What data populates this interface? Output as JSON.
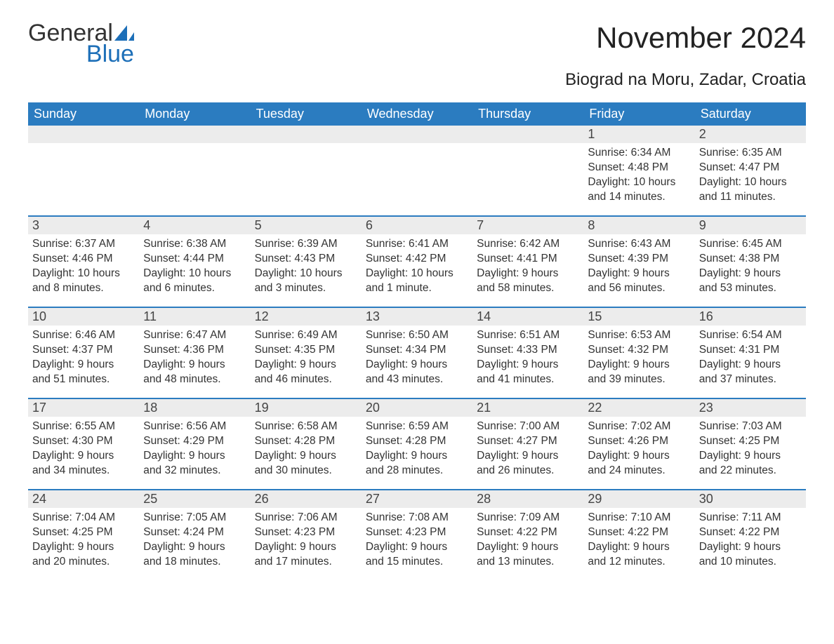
{
  "brand": {
    "general": "General",
    "blue": "Blue"
  },
  "title": "November 2024",
  "subtitle": "Biograd na Moru, Zadar, Croatia",
  "colors": {
    "header_bg": "#2b7cc0",
    "header_text": "#ffffff",
    "daynum_bg": "#ececec",
    "week_border": "#2b7cc0",
    "body_text": "#333333",
    "brand_blue": "#1d6fb8"
  },
  "weekdays": [
    "Sunday",
    "Monday",
    "Tuesday",
    "Wednesday",
    "Thursday",
    "Friday",
    "Saturday"
  ],
  "weeks": [
    [
      null,
      null,
      null,
      null,
      null,
      {
        "n": "1",
        "sunrise": "6:34 AM",
        "sunset": "4:48 PM",
        "daylight": "10 hours and 14 minutes."
      },
      {
        "n": "2",
        "sunrise": "6:35 AM",
        "sunset": "4:47 PM",
        "daylight": "10 hours and 11 minutes."
      }
    ],
    [
      {
        "n": "3",
        "sunrise": "6:37 AM",
        "sunset": "4:46 PM",
        "daylight": "10 hours and 8 minutes."
      },
      {
        "n": "4",
        "sunrise": "6:38 AM",
        "sunset": "4:44 PM",
        "daylight": "10 hours and 6 minutes."
      },
      {
        "n": "5",
        "sunrise": "6:39 AM",
        "sunset": "4:43 PM",
        "daylight": "10 hours and 3 minutes."
      },
      {
        "n": "6",
        "sunrise": "6:41 AM",
        "sunset": "4:42 PM",
        "daylight": "10 hours and 1 minute."
      },
      {
        "n": "7",
        "sunrise": "6:42 AM",
        "sunset": "4:41 PM",
        "daylight": "9 hours and 58 minutes."
      },
      {
        "n": "8",
        "sunrise": "6:43 AM",
        "sunset": "4:39 PM",
        "daylight": "9 hours and 56 minutes."
      },
      {
        "n": "9",
        "sunrise": "6:45 AM",
        "sunset": "4:38 PM",
        "daylight": "9 hours and 53 minutes."
      }
    ],
    [
      {
        "n": "10",
        "sunrise": "6:46 AM",
        "sunset": "4:37 PM",
        "daylight": "9 hours and 51 minutes."
      },
      {
        "n": "11",
        "sunrise": "6:47 AM",
        "sunset": "4:36 PM",
        "daylight": "9 hours and 48 minutes."
      },
      {
        "n": "12",
        "sunrise": "6:49 AM",
        "sunset": "4:35 PM",
        "daylight": "9 hours and 46 minutes."
      },
      {
        "n": "13",
        "sunrise": "6:50 AM",
        "sunset": "4:34 PM",
        "daylight": "9 hours and 43 minutes."
      },
      {
        "n": "14",
        "sunrise": "6:51 AM",
        "sunset": "4:33 PM",
        "daylight": "9 hours and 41 minutes."
      },
      {
        "n": "15",
        "sunrise": "6:53 AM",
        "sunset": "4:32 PM",
        "daylight": "9 hours and 39 minutes."
      },
      {
        "n": "16",
        "sunrise": "6:54 AM",
        "sunset": "4:31 PM",
        "daylight": "9 hours and 37 minutes."
      }
    ],
    [
      {
        "n": "17",
        "sunrise": "6:55 AM",
        "sunset": "4:30 PM",
        "daylight": "9 hours and 34 minutes."
      },
      {
        "n": "18",
        "sunrise": "6:56 AM",
        "sunset": "4:29 PM",
        "daylight": "9 hours and 32 minutes."
      },
      {
        "n": "19",
        "sunrise": "6:58 AM",
        "sunset": "4:28 PM",
        "daylight": "9 hours and 30 minutes."
      },
      {
        "n": "20",
        "sunrise": "6:59 AM",
        "sunset": "4:28 PM",
        "daylight": "9 hours and 28 minutes."
      },
      {
        "n": "21",
        "sunrise": "7:00 AM",
        "sunset": "4:27 PM",
        "daylight": "9 hours and 26 minutes."
      },
      {
        "n": "22",
        "sunrise": "7:02 AM",
        "sunset": "4:26 PM",
        "daylight": "9 hours and 24 minutes."
      },
      {
        "n": "23",
        "sunrise": "7:03 AM",
        "sunset": "4:25 PM",
        "daylight": "9 hours and 22 minutes."
      }
    ],
    [
      {
        "n": "24",
        "sunrise": "7:04 AM",
        "sunset": "4:25 PM",
        "daylight": "9 hours and 20 minutes."
      },
      {
        "n": "25",
        "sunrise": "7:05 AM",
        "sunset": "4:24 PM",
        "daylight": "9 hours and 18 minutes."
      },
      {
        "n": "26",
        "sunrise": "7:06 AM",
        "sunset": "4:23 PM",
        "daylight": "9 hours and 17 minutes."
      },
      {
        "n": "27",
        "sunrise": "7:08 AM",
        "sunset": "4:23 PM",
        "daylight": "9 hours and 15 minutes."
      },
      {
        "n": "28",
        "sunrise": "7:09 AM",
        "sunset": "4:22 PM",
        "daylight": "9 hours and 13 minutes."
      },
      {
        "n": "29",
        "sunrise": "7:10 AM",
        "sunset": "4:22 PM",
        "daylight": "9 hours and 12 minutes."
      },
      {
        "n": "30",
        "sunrise": "7:11 AM",
        "sunset": "4:22 PM",
        "daylight": "9 hours and 10 minutes."
      }
    ]
  ],
  "labels": {
    "sunrise": "Sunrise: ",
    "sunset": "Sunset: ",
    "daylight": "Daylight: "
  }
}
